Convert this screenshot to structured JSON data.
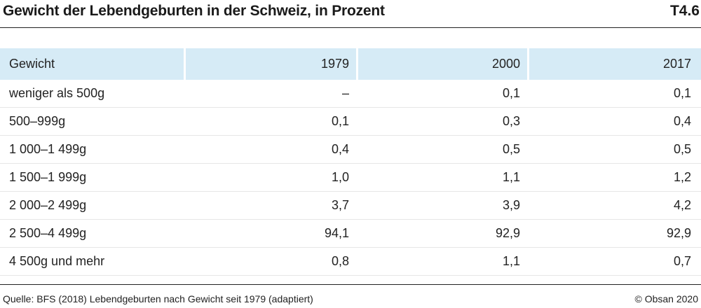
{
  "header": {
    "title": "Gewicht der Lebendgeburten in der Schweiz, in Prozent",
    "tag": "T4.6"
  },
  "table": {
    "columns": [
      "Gewicht",
      "1979",
      "2000",
      "2017"
    ],
    "rows": [
      [
        "weniger als 500g",
        "–",
        "0,1",
        "0,1"
      ],
      [
        "500–999g",
        "0,1",
        "0,3",
        "0,4"
      ],
      [
        "1 000–1 499g",
        "0,4",
        "0,5",
        "0,5"
      ],
      [
        "1 500–1 999g",
        "1,0",
        "1,1",
        "1,2"
      ],
      [
        "2 000–2 499g",
        "3,7",
        "3,9",
        "4,2"
      ],
      [
        "2 500–4 499g",
        "94,1",
        "92,9",
        "92,9"
      ],
      [
        "4 500g und mehr",
        "0,8",
        "1,1",
        "0,7"
      ]
    ]
  },
  "footer": {
    "source": "Quelle: BFS (2018) Lebendgeburten nach Gewicht seit 1979 (adaptiert)",
    "copyright": "© Obsan 2020"
  },
  "colors": {
    "header_bg": "#d6ebf6",
    "rule": "#222222"
  }
}
